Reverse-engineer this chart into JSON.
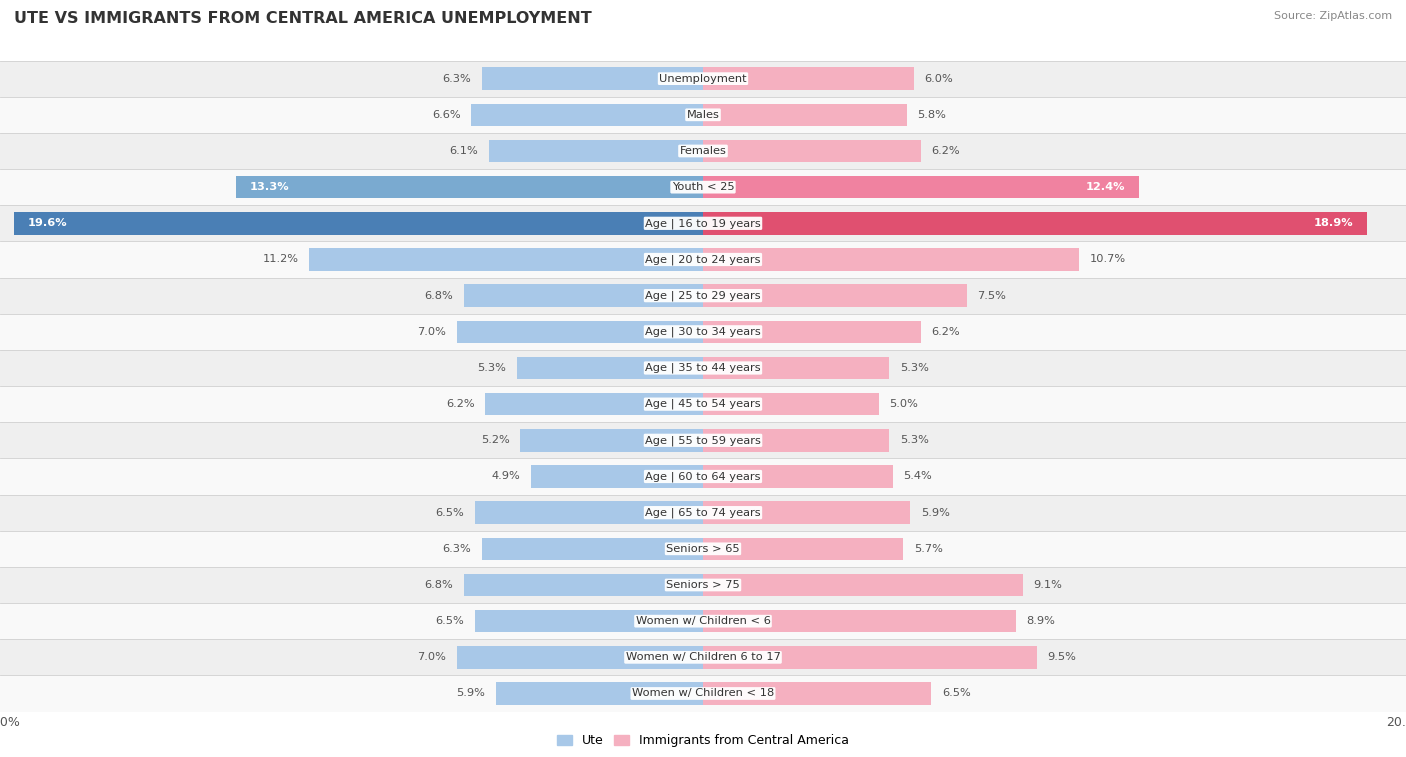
{
  "title": "UTE VS IMMIGRANTS FROM CENTRAL AMERICA UNEMPLOYMENT",
  "source": "Source: ZipAtlas.com",
  "categories": [
    "Unemployment",
    "Males",
    "Females",
    "Youth < 25",
    "Age | 16 to 19 years",
    "Age | 20 to 24 years",
    "Age | 25 to 29 years",
    "Age | 30 to 34 years",
    "Age | 35 to 44 years",
    "Age | 45 to 54 years",
    "Age | 55 to 59 years",
    "Age | 60 to 64 years",
    "Age | 65 to 74 years",
    "Seniors > 65",
    "Seniors > 75",
    "Women w/ Children < 6",
    "Women w/ Children 6 to 17",
    "Women w/ Children < 18"
  ],
  "ute_values": [
    6.3,
    6.6,
    6.1,
    13.3,
    19.6,
    11.2,
    6.8,
    7.0,
    5.3,
    6.2,
    5.2,
    4.9,
    6.5,
    6.3,
    6.8,
    6.5,
    7.0,
    5.9
  ],
  "imm_values": [
    6.0,
    5.8,
    6.2,
    12.4,
    18.9,
    10.7,
    7.5,
    6.2,
    5.3,
    5.0,
    5.3,
    5.4,
    5.9,
    5.7,
    9.1,
    8.9,
    9.5,
    6.5
  ],
  "ute_color_normal": "#a8c8e8",
  "ute_color_mid": "#7aaad0",
  "ute_color_dark": "#4a7fb5",
  "imm_color_normal": "#f5b0c0",
  "imm_color_mid": "#f082a0",
  "imm_color_dark": "#e05070",
  "axis_max": 20.0,
  "bar_height": 0.62,
  "row_bg_even": "#efefef",
  "row_bg_odd": "#f9f9f9",
  "legend_ute": "Ute",
  "legend_imm": "Immigrants from Central America",
  "highlight_mid": [
    3
  ],
  "highlight_dark": [
    4
  ]
}
